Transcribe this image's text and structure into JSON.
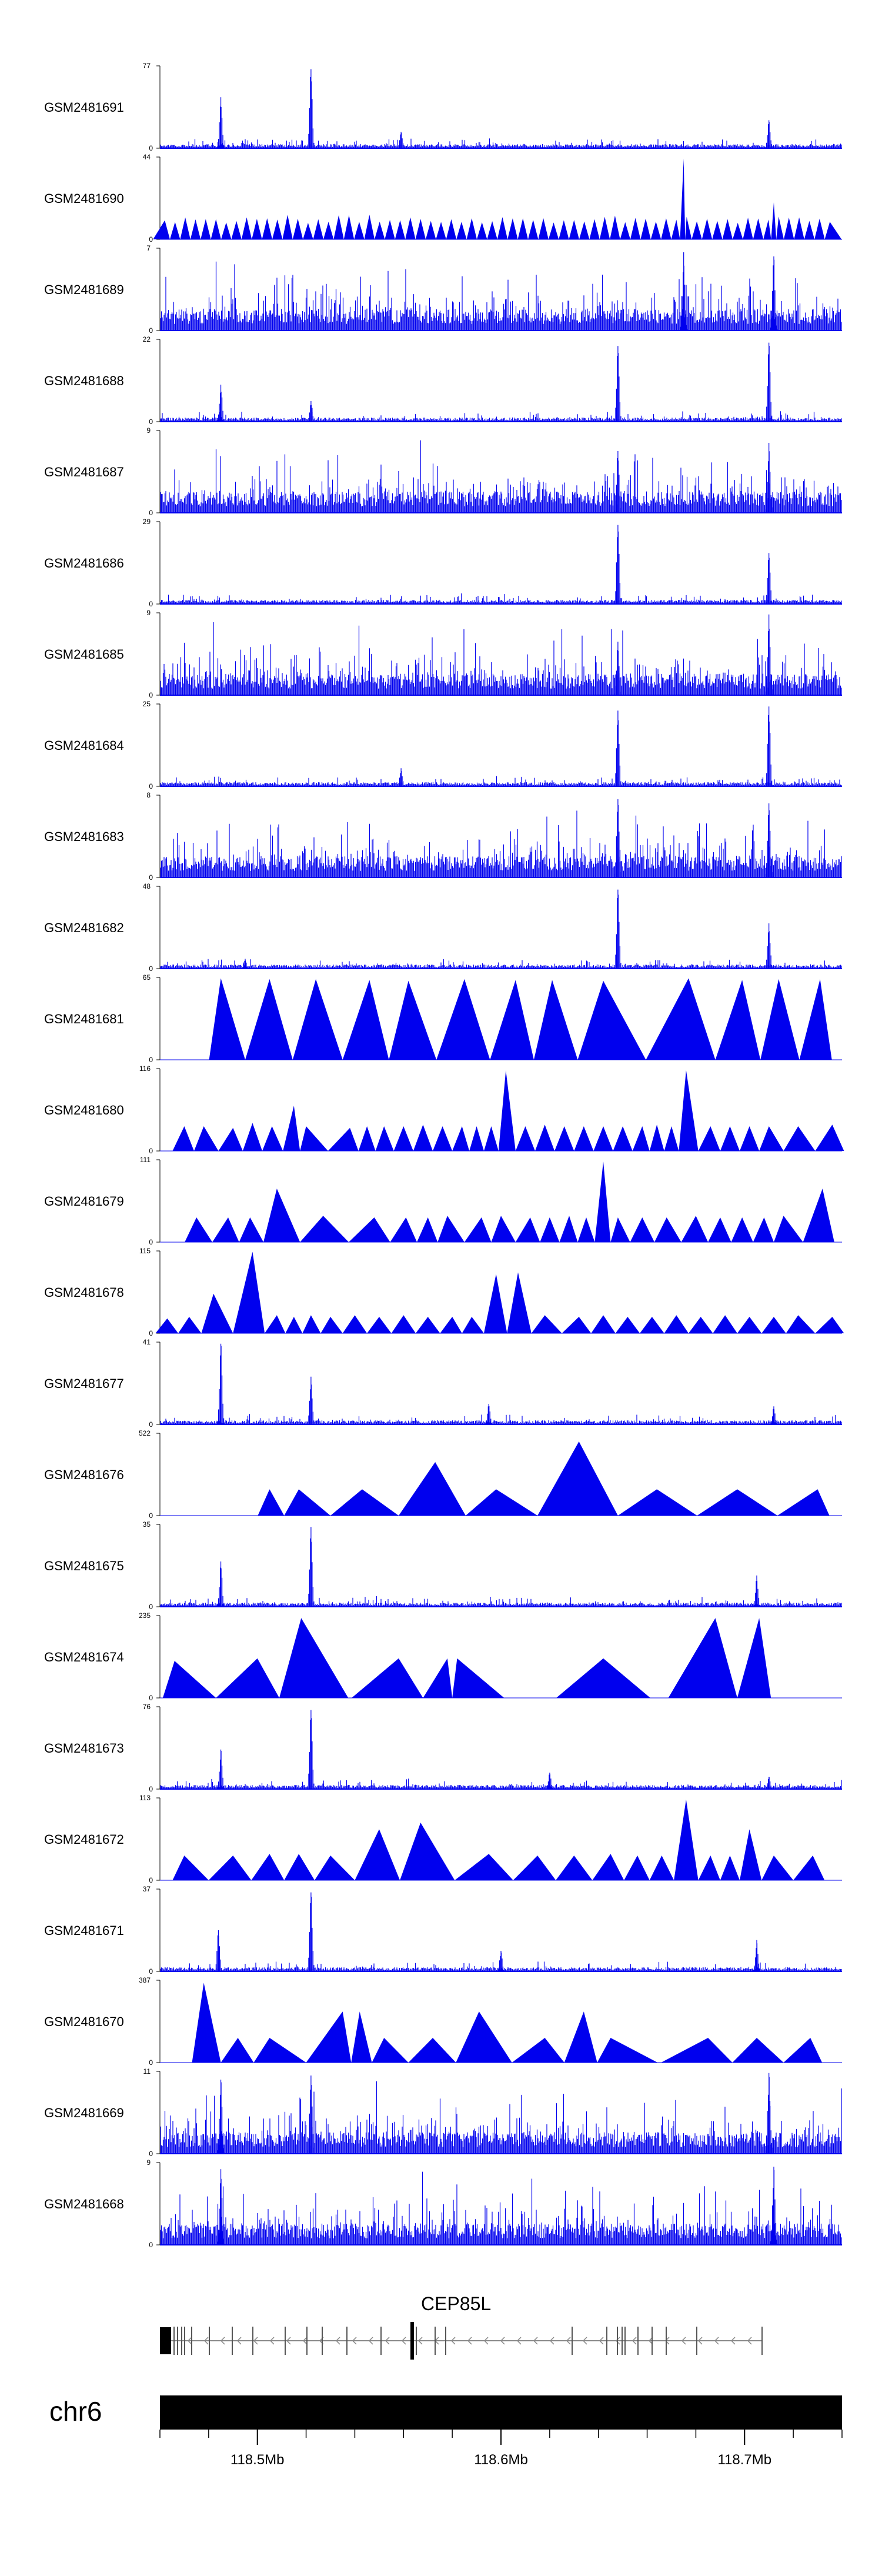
{
  "chart_data": {
    "type": "area",
    "chromosome": "chr6",
    "colors": {
      "signal": "#0000ee",
      "axis": "#000000",
      "gene": "#000000",
      "intron": "#888888"
    },
    "x_axis": {
      "ticks": [
        "118.5Mb",
        "118.6Mb",
        "118.7Mb"
      ],
      "tick_values_mb": [
        118.5,
        118.6,
        118.7
      ],
      "range_mb": [
        118.46,
        118.74
      ]
    },
    "gene": {
      "name": "CEP85L",
      "strand": "-"
    },
    "tracks": [
      {
        "name": "GSM2481691",
        "ymax": "77",
        "style": "spiky",
        "peaks": [
          [
            118.485,
            0.62
          ],
          [
            118.522,
            0.96
          ],
          [
            118.559,
            0.2
          ],
          [
            118.71,
            0.34
          ]
        ]
      },
      {
        "name": "GSM2481690",
        "ymax": "44",
        "style": "dense_tri",
        "peaks": [
          [
            118.675,
            0.98
          ],
          [
            118.712,
            0.45
          ]
        ]
      },
      {
        "name": "GSM2481689",
        "ymax": "7",
        "style": "noise",
        "peaks": [
          [
            118.675,
            0.95
          ],
          [
            118.712,
            0.9
          ]
        ]
      },
      {
        "name": "GSM2481688",
        "ymax": "22",
        "style": "spiky",
        "peaks": [
          [
            118.485,
            0.45
          ],
          [
            118.522,
            0.25
          ],
          [
            118.648,
            0.92
          ],
          [
            118.71,
            0.96
          ]
        ]
      },
      {
        "name": "GSM2481687",
        "ymax": "9",
        "style": "noise",
        "peaks": [
          [
            118.648,
            0.75
          ],
          [
            118.71,
            0.85
          ]
        ]
      },
      {
        "name": "GSM2481686",
        "ymax": "29",
        "style": "spiky",
        "peaks": [
          [
            118.648,
            0.96
          ],
          [
            118.71,
            0.62
          ]
        ]
      },
      {
        "name": "GSM2481685",
        "ymax": "9",
        "style": "noise",
        "peaks": [
          [
            118.648,
            0.65
          ],
          [
            118.71,
            0.98
          ]
        ]
      },
      {
        "name": "GSM2481684",
        "ymax": "25",
        "style": "spiky",
        "peaks": [
          [
            118.559,
            0.22
          ],
          [
            118.648,
            0.92
          ],
          [
            118.71,
            0.97
          ]
        ]
      },
      {
        "name": "GSM2481683",
        "ymax": "8",
        "style": "noise",
        "peaks": [
          [
            118.648,
            0.95
          ],
          [
            118.71,
            0.9
          ]
        ]
      },
      {
        "name": "GSM2481682",
        "ymax": "48",
        "style": "spiky",
        "peaks": [
          [
            118.495,
            0.12
          ],
          [
            118.648,
            0.96
          ],
          [
            118.71,
            0.55
          ]
        ]
      },
      {
        "name": "GSM2481681",
        "ymax": "65",
        "style": "tri",
        "peaks": [
          [
            118.485,
            0.99
          ],
          [
            118.505,
            0.98
          ],
          [
            118.524,
            0.98
          ],
          [
            118.546,
            0.97
          ],
          [
            118.562,
            0.96
          ],
          [
            118.585,
            0.98
          ],
          [
            118.606,
            0.97
          ],
          [
            118.621,
            0.97
          ],
          [
            118.642,
            0.96
          ],
          [
            118.677,
            0.99
          ],
          [
            118.699,
            0.97
          ],
          [
            118.714,
            0.98
          ],
          [
            118.731,
            0.98
          ]
        ]
      },
      {
        "name": "GSM2481680",
        "ymax": "116",
        "style": "tri",
        "peaks": [
          [
            118.47,
            0.3
          ],
          [
            118.478,
            0.3
          ],
          [
            118.49,
            0.28
          ],
          [
            118.498,
            0.34
          ],
          [
            118.506,
            0.3
          ],
          [
            118.515,
            0.55
          ],
          [
            118.52,
            0.3
          ],
          [
            118.538,
            0.28
          ],
          [
            118.545,
            0.3
          ],
          [
            118.552,
            0.3
          ],
          [
            118.56,
            0.3
          ],
          [
            118.568,
            0.32
          ],
          [
            118.576,
            0.3
          ],
          [
            118.584,
            0.3
          ],
          [
            118.59,
            0.3
          ],
          [
            118.596,
            0.3
          ],
          [
            118.602,
            0.98
          ],
          [
            118.61,
            0.3
          ],
          [
            118.618,
            0.32
          ],
          [
            118.626,
            0.3
          ],
          [
            118.634,
            0.3
          ],
          [
            118.642,
            0.3
          ],
          [
            118.65,
            0.3
          ],
          [
            118.658,
            0.3
          ],
          [
            118.664,
            0.32
          ],
          [
            118.67,
            0.3
          ],
          [
            118.676,
            0.98
          ],
          [
            118.686,
            0.3
          ],
          [
            118.694,
            0.3
          ],
          [
            118.702,
            0.3
          ],
          [
            118.71,
            0.3
          ],
          [
            118.722,
            0.3
          ],
          [
            118.736,
            0.32
          ]
        ]
      },
      {
        "name": "GSM2481679",
        "ymax": "111",
        "style": "tri",
        "peaks": [
          [
            118.475,
            0.3
          ],
          [
            118.488,
            0.3
          ],
          [
            118.497,
            0.3
          ],
          [
            118.508,
            0.65
          ],
          [
            118.527,
            0.32
          ],
          [
            118.548,
            0.3
          ],
          [
            118.561,
            0.3
          ],
          [
            118.57,
            0.3
          ],
          [
            118.578,
            0.32
          ],
          [
            118.592,
            0.3
          ],
          [
            118.6,
            0.32
          ],
          [
            118.612,
            0.3
          ],
          [
            118.62,
            0.3
          ],
          [
            118.628,
            0.32
          ],
          [
            118.635,
            0.3
          ],
          [
            118.642,
            0.98
          ],
          [
            118.648,
            0.3
          ],
          [
            118.658,
            0.3
          ],
          [
            118.668,
            0.3
          ],
          [
            118.68,
            0.32
          ],
          [
            118.69,
            0.3
          ],
          [
            118.699,
            0.3
          ],
          [
            118.708,
            0.3
          ],
          [
            118.716,
            0.32
          ],
          [
            118.732,
            0.65
          ]
        ]
      },
      {
        "name": "GSM2481678",
        "ymax": "115",
        "style": "tri",
        "peaks": [
          [
            118.463,
            0.18
          ],
          [
            118.472,
            0.2
          ],
          [
            118.482,
            0.48
          ],
          [
            118.498,
            0.99
          ],
          [
            118.508,
            0.22
          ],
          [
            118.515,
            0.2
          ],
          [
            118.522,
            0.22
          ],
          [
            118.53,
            0.2
          ],
          [
            118.54,
            0.22
          ],
          [
            118.55,
            0.2
          ],
          [
            118.56,
            0.22
          ],
          [
            118.57,
            0.2
          ],
          [
            118.58,
            0.2
          ],
          [
            118.588,
            0.2
          ],
          [
            118.598,
            0.72
          ],
          [
            118.607,
            0.74
          ],
          [
            118.618,
            0.22
          ],
          [
            118.632,
            0.2
          ],
          [
            118.642,
            0.22
          ],
          [
            118.652,
            0.2
          ],
          [
            118.662,
            0.2
          ],
          [
            118.672,
            0.22
          ],
          [
            118.682,
            0.2
          ],
          [
            118.692,
            0.22
          ],
          [
            118.702,
            0.2
          ],
          [
            118.712,
            0.2
          ],
          [
            118.722,
            0.22
          ],
          [
            118.736,
            0.2
          ]
        ]
      },
      {
        "name": "GSM2481677",
        "ymax": "41",
        "style": "spiky",
        "peaks": [
          [
            118.485,
            0.98
          ],
          [
            118.522,
            0.58
          ],
          [
            118.595,
            0.25
          ],
          [
            118.712,
            0.22
          ]
        ]
      },
      {
        "name": "GSM2481676",
        "ymax": "522",
        "style": "tri",
        "peaks": [
          [
            118.505,
            0.32
          ],
          [
            118.517,
            0.32
          ],
          [
            118.543,
            0.32
          ],
          [
            118.573,
            0.65
          ],
          [
            118.598,
            0.32
          ],
          [
            118.632,
            0.9
          ],
          [
            118.664,
            0.32
          ],
          [
            118.697,
            0.32
          ],
          [
            118.73,
            0.32
          ]
        ]
      },
      {
        "name": "GSM2481675",
        "ymax": "35",
        "style": "spiky",
        "peaks": [
          [
            118.485,
            0.55
          ],
          [
            118.522,
            0.97
          ],
          [
            118.705,
            0.38
          ]
        ]
      },
      {
        "name": "GSM2481674",
        "ymax": "235",
        "style": "tri",
        "peaks": [
          [
            118.466,
            0.45
          ],
          [
            118.5,
            0.48
          ],
          [
            118.518,
            0.97
          ],
          [
            118.558,
            0.48
          ],
          [
            118.578,
            0.48
          ],
          [
            118.582,
            0.48
          ],
          [
            118.642,
            0.48
          ],
          [
            118.688,
            0.97
          ],
          [
            118.706,
            0.97
          ]
        ]
      },
      {
        "name": "GSM2481673",
        "ymax": "76",
        "style": "spiky",
        "peaks": [
          [
            118.485,
            0.48
          ],
          [
            118.522,
            0.96
          ],
          [
            118.62,
            0.2
          ],
          [
            118.71,
            0.15
          ]
        ]
      },
      {
        "name": "GSM2481672",
        "ymax": "113",
        "style": "tri",
        "peaks": [
          [
            118.47,
            0.3
          ],
          [
            118.49,
            0.3
          ],
          [
            118.505,
            0.32
          ],
          [
            118.517,
            0.32
          ],
          [
            118.53,
            0.3
          ],
          [
            118.55,
            0.62
          ],
          [
            118.567,
            0.7
          ],
          [
            118.595,
            0.32
          ],
          [
            118.615,
            0.3
          ],
          [
            118.63,
            0.3
          ],
          [
            118.645,
            0.32
          ],
          [
            118.656,
            0.3
          ],
          [
            118.666,
            0.3
          ],
          [
            118.676,
            0.98
          ],
          [
            118.686,
            0.3
          ],
          [
            118.694,
            0.3
          ],
          [
            118.702,
            0.62
          ],
          [
            118.712,
            0.3
          ],
          [
            118.728,
            0.3
          ]
        ]
      },
      {
        "name": "GSM2481671",
        "ymax": "37",
        "style": "spiky",
        "peaks": [
          [
            118.484,
            0.5
          ],
          [
            118.522,
            0.96
          ],
          [
            118.6,
            0.25
          ],
          [
            118.705,
            0.38
          ]
        ]
      },
      {
        "name": "GSM2481670",
        "ymax": "387",
        "style": "tri",
        "peaks": [
          [
            118.478,
            0.97
          ],
          [
            118.492,
            0.3
          ],
          [
            118.505,
            0.3
          ],
          [
            118.535,
            0.62
          ],
          [
            118.542,
            0.62
          ],
          [
            118.552,
            0.3
          ],
          [
            118.572,
            0.3
          ],
          [
            118.591,
            0.62
          ],
          [
            118.618,
            0.3
          ],
          [
            118.634,
            0.62
          ],
          [
            118.645,
            0.3
          ],
          [
            118.685,
            0.3
          ],
          [
            118.705,
            0.3
          ],
          [
            118.727,
            0.3
          ]
        ]
      },
      {
        "name": "GSM2481669",
        "ymax": "11",
        "style": "noise_spiky",
        "peaks": [
          [
            118.485,
            0.9
          ],
          [
            118.522,
            0.95
          ],
          [
            118.71,
            0.98
          ]
        ]
      },
      {
        "name": "GSM2481668",
        "ymax": "9",
        "style": "noise",
        "peaks": [
          [
            118.485,
            0.92
          ],
          [
            118.712,
            0.95
          ]
        ]
      }
    ]
  }
}
